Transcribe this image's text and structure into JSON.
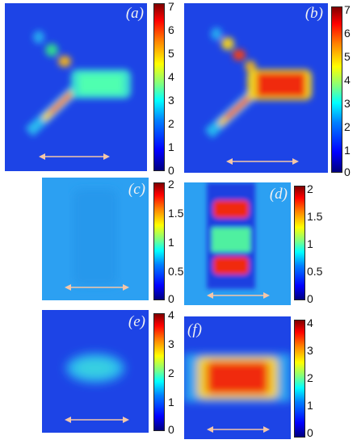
{
  "panels": [
    {
      "label": "(a)",
      "cbar_ticks": [
        "7",
        "6",
        "5",
        "4",
        "3",
        "2",
        "1",
        "0"
      ]
    },
    {
      "label": "(b)",
      "cbar_ticks": [
        "7",
        "6",
        "5",
        "4",
        "3",
        "2",
        "1",
        "0"
      ]
    },
    {
      "label": "(c)",
      "cbar_ticks": [
        "2",
        "1.5",
        "1",
        "0.5",
        "0"
      ]
    },
    {
      "label": "(d)",
      "cbar_ticks": [
        "2",
        "1.5",
        "1",
        "0.5",
        "0"
      ]
    },
    {
      "label": "(e)",
      "cbar_ticks": [
        "4",
        "3",
        "2",
        "1",
        "0"
      ]
    },
    {
      "label": "(f)",
      "cbar_ticks": [
        "4",
        "3",
        "2",
        "1",
        "0"
      ]
    }
  ],
  "colors": {
    "deep_blue": "#1a3fe0",
    "light_blue": "#2a9ff0",
    "cyan": "#30e0d8",
    "red": "#f02a10",
    "arrow": "#f4c6a8"
  }
}
